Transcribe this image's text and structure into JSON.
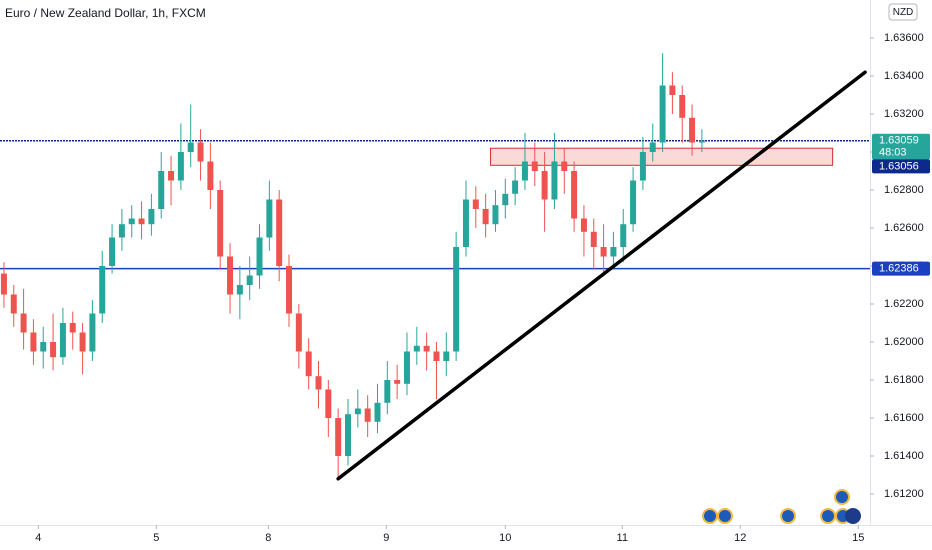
{
  "chart_data": {
    "type": "candlestick",
    "title": "Euro / New Zealand Dollar, 1h, FXCM",
    "currency": "NZD",
    "up_color": "#26a69a",
    "down_color": "#ef5350",
    "x": [
      -3.5,
      -2.5,
      -1.5,
      -0.5,
      0.5,
      1.5,
      2.5,
      3.5,
      4.5,
      5.5,
      6.5,
      7.5,
      8.5,
      9.5,
      10.5,
      11.5,
      12.5,
      13.5,
      14.5,
      15.5,
      16.5,
      17.5,
      18.5,
      19.5,
      20.5,
      21.5,
      22.5,
      23.5,
      24.5,
      25.5,
      26.5,
      27.5,
      28.5,
      29.5,
      30.5,
      31.5,
      32.5,
      33.5,
      34.5,
      35.5,
      36.5,
      37.5,
      38.5,
      39.5,
      40.5,
      41.5,
      42.5,
      43.5,
      44.5,
      45.5,
      46.5,
      47.5,
      48.5,
      49.5,
      50.5,
      51.5,
      52.5,
      53.5,
      54.5,
      55.5,
      56.5,
      57.5,
      58.5,
      59.5,
      60.5,
      61.5,
      62.5,
      63.5,
      64.5,
      65.5,
      66.5,
      67.5
    ],
    "ohlc": [
      [
        1.6236,
        1.6242,
        1.6218,
        1.6225
      ],
      [
        1.6225,
        1.623,
        1.6208,
        1.6215
      ],
      [
        1.6215,
        1.6228,
        1.6196,
        1.6205
      ],
      [
        1.6205,
        1.6212,
        1.6188,
        1.6195
      ],
      [
        1.6195,
        1.6208,
        1.6186,
        1.62
      ],
      [
        1.62,
        1.6215,
        1.6185,
        1.6192
      ],
      [
        1.6192,
        1.6218,
        1.6188,
        1.621
      ],
      [
        1.621,
        1.6216,
        1.6196,
        1.6205
      ],
      [
        1.6205,
        1.621,
        1.6183,
        1.6195
      ],
      [
        1.6195,
        1.6222,
        1.619,
        1.6215
      ],
      [
        1.6215,
        1.6248,
        1.621,
        1.624
      ],
      [
        1.624,
        1.6262,
        1.6236,
        1.6255
      ],
      [
        1.6255,
        1.627,
        1.6248,
        1.6262
      ],
      [
        1.6262,
        1.6272,
        1.6255,
        1.6265
      ],
      [
        1.6265,
        1.6274,
        1.6254,
        1.6262
      ],
      [
        1.6262,
        1.6278,
        1.6256,
        1.627
      ],
      [
        1.627,
        1.63,
        1.6265,
        1.629
      ],
      [
        1.629,
        1.6298,
        1.6272,
        1.6285
      ],
      [
        1.6285,
        1.6315,
        1.628,
        1.63
      ],
      [
        1.63,
        1.6325,
        1.6292,
        1.6305
      ],
      [
        1.6305,
        1.6312,
        1.6285,
        1.6295
      ],
      [
        1.6295,
        1.6305,
        1.627,
        1.628
      ],
      [
        1.628,
        1.6285,
        1.6238,
        1.6245
      ],
      [
        1.6245,
        1.6252,
        1.6215,
        1.6225
      ],
      [
        1.6225,
        1.624,
        1.6212,
        1.623
      ],
      [
        1.623,
        1.6245,
        1.6222,
        1.6235
      ],
      [
        1.6235,
        1.6262,
        1.6228,
        1.6255
      ],
      [
        1.6255,
        1.6285,
        1.6248,
        1.6275
      ],
      [
        1.6275,
        1.628,
        1.6232,
        1.624
      ],
      [
        1.624,
        1.6246,
        1.6208,
        1.6215
      ],
      [
        1.6215,
        1.622,
        1.6186,
        1.6195
      ],
      [
        1.6195,
        1.6202,
        1.6175,
        1.6182
      ],
      [
        1.6182,
        1.619,
        1.6165,
        1.6175
      ],
      [
        1.6175,
        1.618,
        1.615,
        1.616
      ],
      [
        1.616,
        1.6165,
        1.6128,
        1.614
      ],
      [
        1.614,
        1.617,
        1.6135,
        1.6162
      ],
      [
        1.6162,
        1.6175,
        1.6155,
        1.6165
      ],
      [
        1.6165,
        1.6172,
        1.615,
        1.6158
      ],
      [
        1.6158,
        1.6178,
        1.6152,
        1.6168
      ],
      [
        1.6168,
        1.619,
        1.6162,
        1.618
      ],
      [
        1.618,
        1.6188,
        1.617,
        1.6178
      ],
      [
        1.6178,
        1.6205,
        1.6172,
        1.6195
      ],
      [
        1.6195,
        1.6208,
        1.6188,
        1.6198
      ],
      [
        1.6198,
        1.6205,
        1.6185,
        1.6195
      ],
      [
        1.6195,
        1.62,
        1.617,
        1.619
      ],
      [
        1.619,
        1.6205,
        1.6182,
        1.6195
      ],
      [
        1.6195,
        1.6258,
        1.619,
        1.625
      ],
      [
        1.625,
        1.6285,
        1.6245,
        1.6275
      ],
      [
        1.6275,
        1.6282,
        1.626,
        1.627
      ],
      [
        1.627,
        1.6278,
        1.6255,
        1.6262
      ],
      [
        1.6262,
        1.628,
        1.6258,
        1.6272
      ],
      [
        1.6272,
        1.6286,
        1.6265,
        1.6278
      ],
      [
        1.6278,
        1.6292,
        1.6272,
        1.6285
      ],
      [
        1.6285,
        1.631,
        1.628,
        1.6295
      ],
      [
        1.6295,
        1.6305,
        1.6282,
        1.629
      ],
      [
        1.629,
        1.63,
        1.6258,
        1.6275
      ],
      [
        1.6275,
        1.631,
        1.627,
        1.6295
      ],
      [
        1.6295,
        1.6302,
        1.6278,
        1.629
      ],
      [
        1.629,
        1.6295,
        1.6258,
        1.6265
      ],
      [
        1.6265,
        1.6272,
        1.6245,
        1.6258
      ],
      [
        1.6258,
        1.6265,
        1.6238,
        1.625
      ],
      [
        1.625,
        1.6262,
        1.6236,
        1.6245
      ],
      [
        1.6245,
        1.6258,
        1.6238,
        1.625
      ],
      [
        1.625,
        1.627,
        1.6242,
        1.6262
      ],
      [
        1.6262,
        1.6292,
        1.6258,
        1.6285
      ],
      [
        1.6285,
        1.6308,
        1.628,
        1.63
      ],
      [
        1.63,
        1.6315,
        1.6295,
        1.6305
      ],
      [
        1.6305,
        1.6352,
        1.63,
        1.6335
      ],
      [
        1.6335,
        1.6342,
        1.632,
        1.633
      ],
      [
        1.633,
        1.6335,
        1.6305,
        1.6318
      ],
      [
        1.6318,
        1.6325,
        1.6298,
        1.6305
      ],
      [
        1.6305,
        1.6312,
        1.63,
        1.6306
      ]
    ],
    "xlim": [
      -3.9,
      84.6
    ],
    "ylim": [
      1.6105,
      1.638
    ],
    "xticks": [
      {
        "value": 0,
        "label": "4"
      },
      {
        "value": 12,
        "label": "5"
      },
      {
        "value": 23.4,
        "label": "8"
      },
      {
        "value": 35.4,
        "label": "9"
      },
      {
        "value": 47.5,
        "label": "10"
      },
      {
        "value": 59.4,
        "label": "11"
      },
      {
        "value": 71.4,
        "label": "12"
      },
      {
        "value": 83.4,
        "label": "15"
      }
    ],
    "yticks": [
      {
        "value": 1.612,
        "label": "1.61200"
      },
      {
        "value": 1.614,
        "label": "1.61400"
      },
      {
        "value": 1.616,
        "label": "1.61600"
      },
      {
        "value": 1.618,
        "label": "1.61800"
      },
      {
        "value": 1.62,
        "label": "1.62000"
      },
      {
        "value": 1.622,
        "label": "1.62200"
      },
      {
        "value": 1.624,
        "label": "1.62400"
      },
      {
        "value": 1.626,
        "label": "1.62600"
      },
      {
        "value": 1.628,
        "label": "1.62800"
      },
      {
        "value": 1.63,
        "label": "1.63000"
      },
      {
        "value": 1.632,
        "label": "1.63200"
      },
      {
        "value": 1.634,
        "label": "1.63400"
      },
      {
        "value": 1.636,
        "label": "1.63600"
      }
    ],
    "price_lines": [
      {
        "value": 1.63059,
        "label": "1.63059",
        "color": "#0d2a8a",
        "box_color": "#26a69a",
        "countdown": "48:03"
      },
      {
        "value": 1.62386,
        "label": "1.62386",
        "color": "#1a3fbf",
        "box_color": "#1a3fbf"
      }
    ],
    "last_price": {
      "value": 1.63056,
      "label": "1.63056",
      "box_color": "#0d2a8a"
    },
    "zone": {
      "x": [
        46,
        80.8
      ],
      "y": [
        1.6293,
        1.6302
      ],
      "color": "#f8c9c9",
      "border": "#d32f2f"
    },
    "trendline": {
      "x": [
        30.5,
        84.1
      ],
      "y": [
        1.6128,
        1.6342
      ],
      "color": "#000000"
    }
  }
}
